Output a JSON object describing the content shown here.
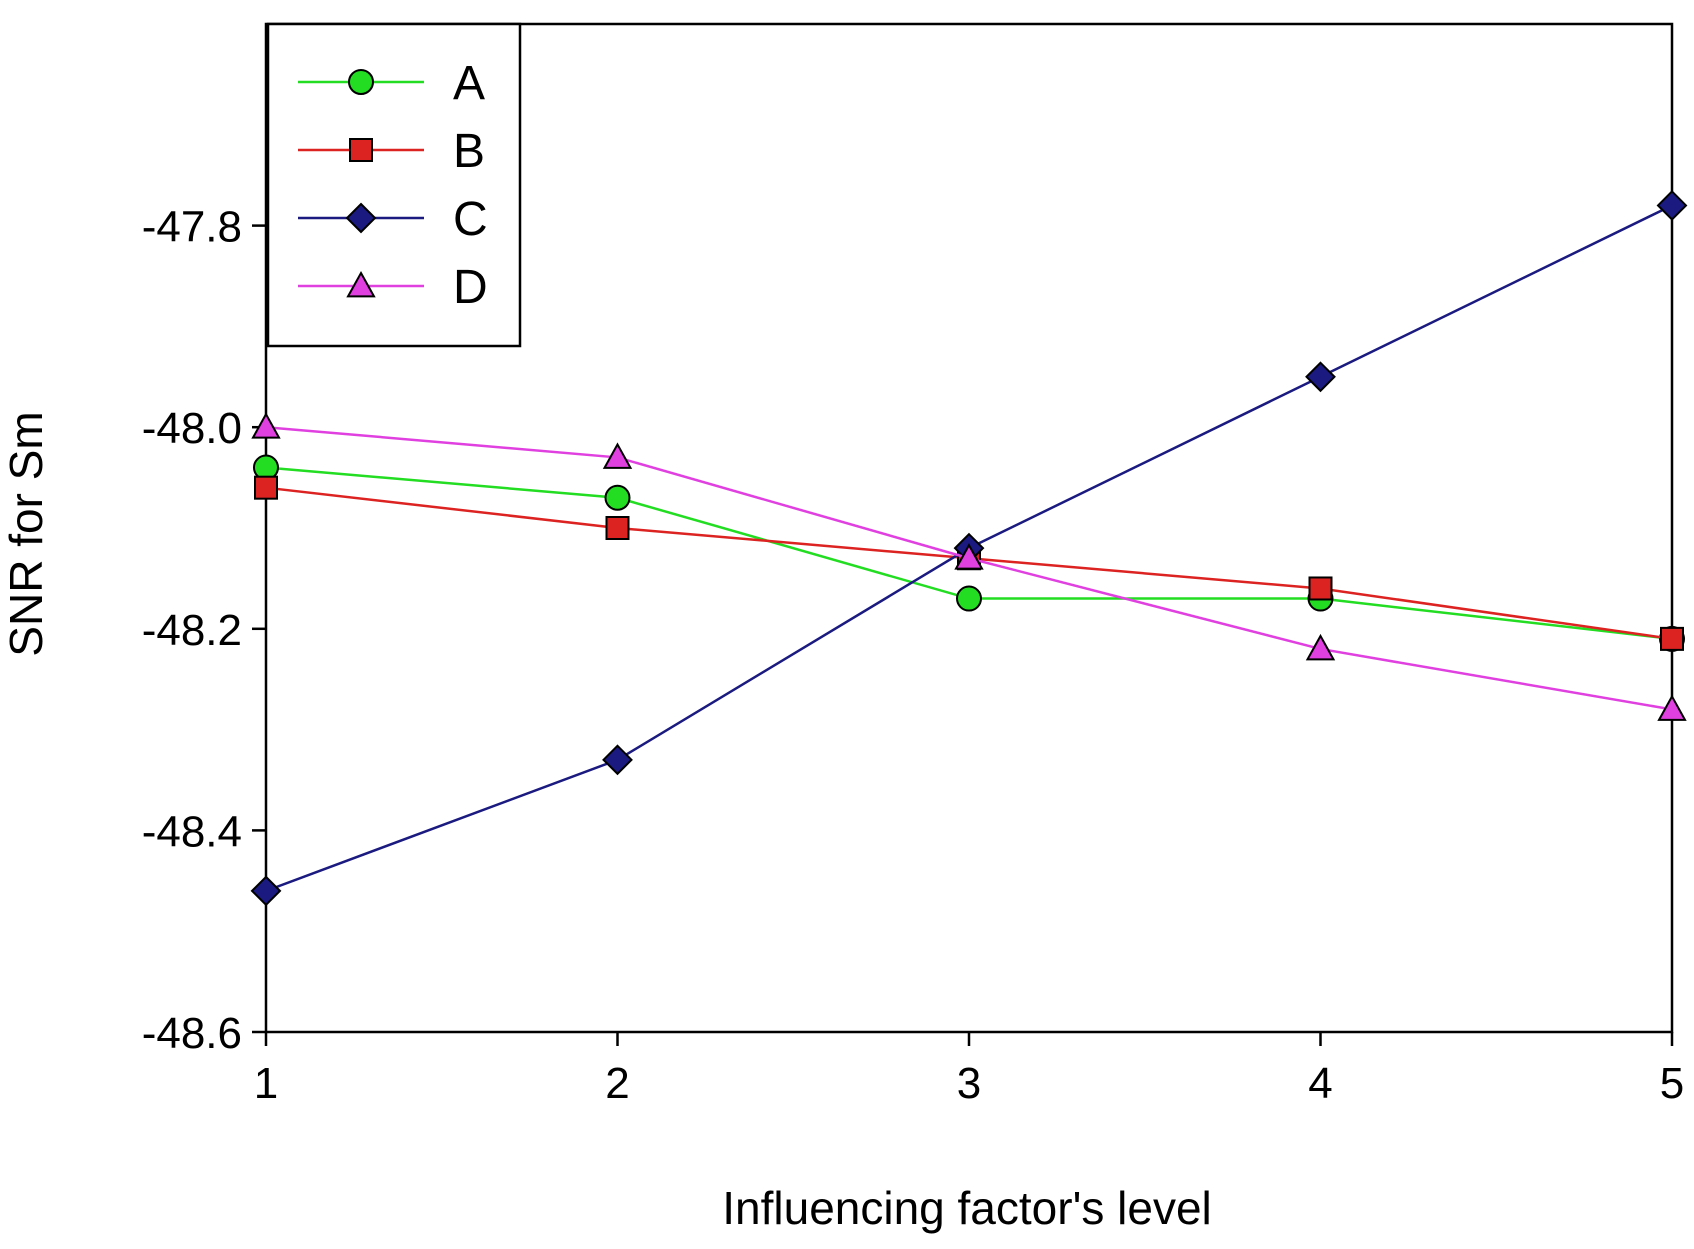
{
  "chart_data": {
    "type": "line",
    "title": "",
    "xlabel": "Influencing factor's level",
    "ylabel": "SNR for Sm",
    "x": [
      1,
      2,
      3,
      4,
      5
    ],
    "x_ticks": [
      "1",
      "2",
      "3",
      "4",
      "5"
    ],
    "xlim": [
      1,
      5
    ],
    "ylim": [
      -48.6,
      -47.6
    ],
    "y_ticks": [
      -48.6,
      -48.4,
      -48.2,
      -48.0,
      -47.8
    ],
    "y_tick_labels": [
      "-48.6",
      "-48.4",
      "-48.2",
      "-48.0",
      "-47.8"
    ],
    "grid": false,
    "legend_position": "top-left",
    "series": [
      {
        "name": "A",
        "color": "#22dd22",
        "marker": "circle",
        "values": [
          -48.04,
          -48.07,
          -48.17,
          -48.17,
          -48.21
        ]
      },
      {
        "name": "B",
        "color": "#dd2222",
        "marker": "square",
        "values": [
          -48.06,
          -48.1,
          -48.13,
          -48.16,
          -48.21
        ]
      },
      {
        "name": "C",
        "color": "#1a1a80",
        "marker": "diamond",
        "values": [
          -48.46,
          -48.33,
          -48.12,
          -47.95,
          -47.78
        ]
      },
      {
        "name": "D",
        "color": "#e040e0",
        "marker": "triangle",
        "values": [
          -48.0,
          -48.03,
          -48.13,
          -48.22,
          -48.28
        ]
      }
    ]
  }
}
